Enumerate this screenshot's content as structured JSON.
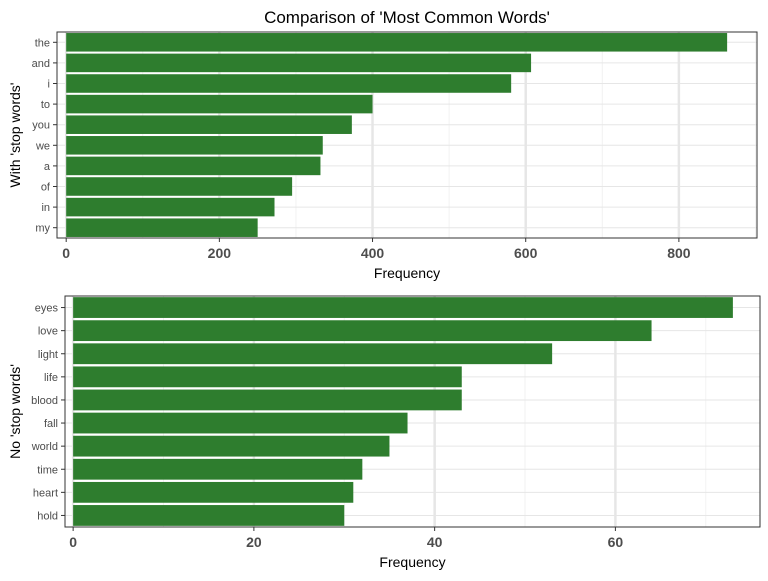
{
  "title": "Comparison of 'Most Common Words'",
  "colors": {
    "bar": "#2e7d2e",
    "grid_major": "#e6e6e6",
    "grid_minor": "#f2f2f2",
    "panel_border": "#333333"
  },
  "chart_data": [
    {
      "type": "bar",
      "orientation": "horizontal",
      "categories": [
        "the",
        "and",
        "i",
        "to",
        "you",
        "we",
        "a",
        "of",
        "in",
        "my"
      ],
      "values": [
        863,
        607,
        581,
        400,
        373,
        335,
        332,
        295,
        272,
        250
      ],
      "xlabel": "Frequency",
      "ylabel": "With 'stop words'",
      "xlim": [
        -12,
        902
      ],
      "xticks": [
        0,
        200,
        400,
        600,
        800
      ],
      "grid": true
    },
    {
      "type": "bar",
      "orientation": "horizontal",
      "categories": [
        "eyes",
        "love",
        "light",
        "life",
        "blood",
        "fall",
        "world",
        "time",
        "heart",
        "hold"
      ],
      "values": [
        73,
        64,
        53,
        43,
        43,
        37,
        35,
        32,
        31,
        30
      ],
      "xlabel": "Frequency",
      "ylabel": "No 'stop words'",
      "xlim": [
        -0.9,
        76
      ],
      "xticks": [
        0,
        20,
        40,
        60
      ],
      "grid": true
    }
  ]
}
